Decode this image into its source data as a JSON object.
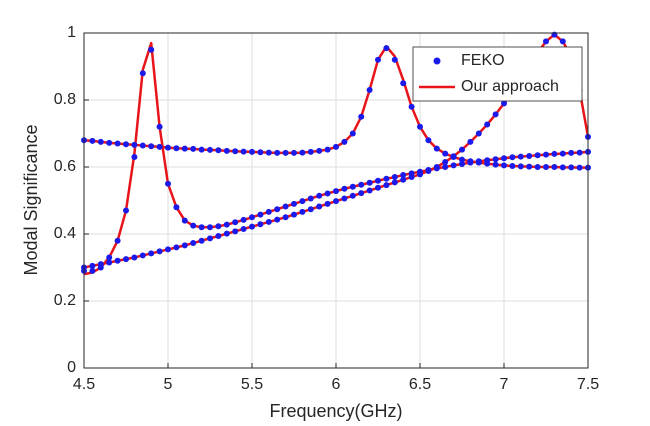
{
  "chart_data": {
    "type": "line",
    "xlabel": "Frequency(GHz)",
    "ylabel": "Modal Significance",
    "xlim": [
      4.5,
      7.5
    ],
    "xticks": [
      4.5,
      5,
      5.5,
      6,
      6.5,
      7,
      7.5
    ],
    "ylim": [
      0,
      1
    ],
    "yticks": [
      0,
      0.2,
      0.4,
      0.6,
      0.8,
      1
    ],
    "grid": true,
    "legend": "upper right",
    "x": [
      4.5,
      4.55,
      4.6,
      4.65,
      4.7,
      4.75,
      4.8,
      4.85,
      4.9,
      4.95,
      5.0,
      5.05,
      5.1,
      5.15,
      5.2,
      5.25,
      5.3,
      5.35,
      5.4,
      5.45,
      5.5,
      5.55,
      5.6,
      5.65,
      5.7,
      5.75,
      5.8,
      5.85,
      5.9,
      5.95,
      6.0,
      6.05,
      6.1,
      6.15,
      6.2,
      6.25,
      6.3,
      6.35,
      6.4,
      6.45,
      6.5,
      6.55,
      6.6,
      6.65,
      6.7,
      6.75,
      6.8,
      6.85,
      6.9,
      6.95,
      7.0,
      7.05,
      7.1,
      7.15,
      7.2,
      7.25,
      7.3,
      7.35,
      7.4,
      7.45,
      7.5
    ],
    "series": [
      {
        "name": "FEKO",
        "color": "#1a1aeb",
        "marker": "dot",
        "curves": [
          [
            0.68,
            0.678,
            0.675,
            0.672,
            0.67,
            0.668,
            0.666,
            0.664,
            0.662,
            0.66,
            0.658,
            0.656,
            0.655,
            0.654,
            0.652,
            0.651,
            0.65,
            0.648,
            0.647,
            0.646,
            0.645,
            0.644,
            0.643,
            0.642,
            0.642,
            0.642,
            0.643,
            0.645,
            0.648,
            0.652,
            0.66,
            0.675,
            0.7,
            0.75,
            0.83,
            0.92,
            0.955,
            0.92,
            0.85,
            0.78,
            0.72,
            0.68,
            0.655,
            0.64,
            0.63,
            0.622,
            0.617,
            0.613,
            0.61,
            0.607,
            0.605,
            0.603,
            0.602,
            0.601,
            0.6,
            0.6,
            0.6,
            0.599,
            0.599,
            0.598,
            0.598
          ],
          [
            0.29,
            0.29,
            0.3,
            0.33,
            0.38,
            0.47,
            0.63,
            0.88,
            0.95,
            0.72,
            0.55,
            0.48,
            0.44,
            0.425,
            0.42,
            0.42,
            0.423,
            0.428,
            0.435,
            0.442,
            0.45,
            0.458,
            0.466,
            0.474,
            0.482,
            0.49,
            0.498,
            0.506,
            0.514,
            0.521,
            0.528,
            0.535,
            0.541,
            0.547,
            0.553,
            0.559,
            0.565,
            0.57,
            0.576,
            0.581,
            0.586,
            0.591,
            0.596,
            0.6,
            0.605,
            0.609,
            0.613,
            0.617,
            0.62,
            0.623,
            0.626,
            0.629,
            0.631,
            0.633,
            0.635,
            0.637,
            0.639,
            0.64,
            0.642,
            0.643,
            0.645
          ],
          [
            0.3,
            0.305,
            0.31,
            0.315,
            0.32,
            0.325,
            0.33,
            0.336,
            0.342,
            0.348,
            0.354,
            0.36,
            0.366,
            0.373,
            0.38,
            0.387,
            0.394,
            0.401,
            0.408,
            0.415,
            0.422,
            0.429,
            0.436,
            0.443,
            0.45,
            0.458,
            0.466,
            0.474,
            0.482,
            0.49,
            0.498,
            0.506,
            0.514,
            0.522,
            0.53,
            0.538,
            0.546,
            0.554,
            0.562,
            0.57,
            0.578,
            0.588,
            0.6,
            0.615,
            0.632,
            0.652,
            0.675,
            0.7,
            0.727,
            0.757,
            0.79,
            0.825,
            0.862,
            0.9,
            0.94,
            0.975,
            0.995,
            0.975,
            0.93,
            0.83,
            0.69
          ]
        ]
      },
      {
        "name": "Our approach",
        "color": "#e8141a",
        "marker": "line",
        "curves": [
          [
            0.68,
            0.678,
            0.675,
            0.672,
            0.67,
            0.668,
            0.666,
            0.664,
            0.662,
            0.66,
            0.658,
            0.656,
            0.655,
            0.654,
            0.652,
            0.651,
            0.65,
            0.648,
            0.647,
            0.646,
            0.645,
            0.644,
            0.643,
            0.642,
            0.642,
            0.642,
            0.643,
            0.645,
            0.648,
            0.652,
            0.66,
            0.675,
            0.7,
            0.75,
            0.83,
            0.92,
            0.96,
            0.93,
            0.86,
            0.78,
            0.72,
            0.68,
            0.655,
            0.64,
            0.63,
            0.622,
            0.617,
            0.613,
            0.61,
            0.607,
            0.605,
            0.603,
            0.602,
            0.601,
            0.6,
            0.6,
            0.6,
            0.599,
            0.599,
            0.598,
            0.598
          ],
          [
            0.28,
            0.285,
            0.3,
            0.33,
            0.38,
            0.47,
            0.64,
            0.89,
            0.97,
            0.72,
            0.55,
            0.48,
            0.44,
            0.425,
            0.42,
            0.42,
            0.423,
            0.428,
            0.435,
            0.442,
            0.45,
            0.458,
            0.466,
            0.474,
            0.482,
            0.49,
            0.498,
            0.506,
            0.514,
            0.521,
            0.528,
            0.535,
            0.541,
            0.547,
            0.553,
            0.559,
            0.565,
            0.57,
            0.576,
            0.581,
            0.586,
            0.591,
            0.596,
            0.6,
            0.605,
            0.609,
            0.613,
            0.617,
            0.62,
            0.623,
            0.626,
            0.629,
            0.631,
            0.633,
            0.635,
            0.637,
            0.639,
            0.64,
            0.642,
            0.643,
            0.645
          ],
          [
            0.3,
            0.305,
            0.31,
            0.315,
            0.32,
            0.325,
            0.33,
            0.336,
            0.342,
            0.348,
            0.354,
            0.36,
            0.366,
            0.373,
            0.38,
            0.387,
            0.394,
            0.401,
            0.408,
            0.415,
            0.422,
            0.429,
            0.436,
            0.443,
            0.45,
            0.458,
            0.466,
            0.474,
            0.482,
            0.49,
            0.498,
            0.506,
            0.514,
            0.522,
            0.53,
            0.538,
            0.546,
            0.554,
            0.562,
            0.57,
            0.578,
            0.588,
            0.6,
            0.615,
            0.632,
            0.652,
            0.675,
            0.7,
            0.727,
            0.757,
            0.79,
            0.825,
            0.862,
            0.9,
            0.94,
            0.975,
            0.995,
            0.975,
            0.93,
            0.83,
            0.69
          ]
        ]
      }
    ]
  }
}
